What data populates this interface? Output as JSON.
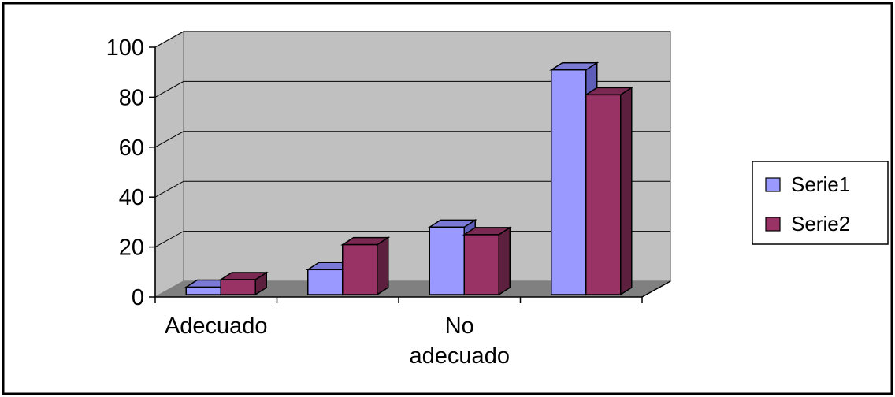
{
  "chart_data": {
    "type": "bar",
    "categories": [
      "Adecuado",
      "",
      "No adecuado",
      ""
    ],
    "category_label_lines": [
      [
        "Adecuado"
      ],
      [],
      [
        "No",
        "adecuado"
      ],
      []
    ],
    "series": [
      {
        "name": "Serie1",
        "values": [
          3,
          10,
          27,
          90
        ]
      },
      {
        "name": "Serie2",
        "values": [
          6,
          20,
          24,
          80
        ]
      }
    ],
    "ylim": [
      0,
      100
    ],
    "yticks": [
      0,
      20,
      40,
      60,
      80,
      100
    ],
    "grid": true,
    "legend": "right",
    "three_d": true,
    "colors": {
      "wall": "#c0c0c0",
      "floor": "#808080",
      "grid": "#000000",
      "series1_face": "#9999ff",
      "series1_side": "#5e5eb8",
      "series1_top": "#7a7ad6",
      "series2_face": "#993366",
      "series2_side": "#5c1f3d",
      "series2_top": "#7a2952"
    }
  }
}
